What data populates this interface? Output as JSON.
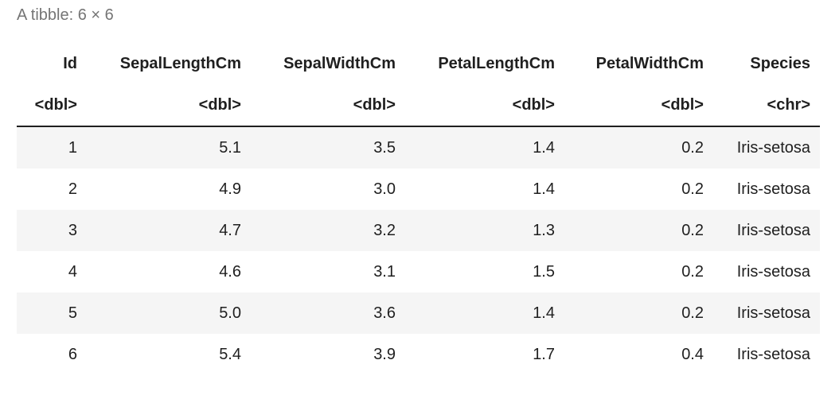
{
  "caption": "A tibble: 6 × 6",
  "columns": [
    {
      "name": "Id",
      "type": "<dbl>"
    },
    {
      "name": "SepalLengthCm",
      "type": "<dbl>"
    },
    {
      "name": "SepalWidthCm",
      "type": "<dbl>"
    },
    {
      "name": "PetalLengthCm",
      "type": "<dbl>"
    },
    {
      "name": "PetalWidthCm",
      "type": "<dbl>"
    },
    {
      "name": "Species",
      "type": "<chr>"
    }
  ],
  "rows": [
    [
      "1",
      "5.1",
      "3.5",
      "1.4",
      "0.2",
      "Iris-setosa"
    ],
    [
      "2",
      "4.9",
      "3.0",
      "1.4",
      "0.2",
      "Iris-setosa"
    ],
    [
      "3",
      "4.7",
      "3.2",
      "1.3",
      "0.2",
      "Iris-setosa"
    ],
    [
      "4",
      "4.6",
      "3.1",
      "1.5",
      "0.2",
      "Iris-setosa"
    ],
    [
      "5",
      "5.0",
      "3.6",
      "1.4",
      "0.2",
      "Iris-setosa"
    ],
    [
      "6",
      "5.4",
      "3.9",
      "1.7",
      "0.4",
      "Iris-setosa"
    ]
  ],
  "colors": {
    "caption": "#757575",
    "stripe": "#f5f5f5",
    "text": "#1f1f1f"
  }
}
